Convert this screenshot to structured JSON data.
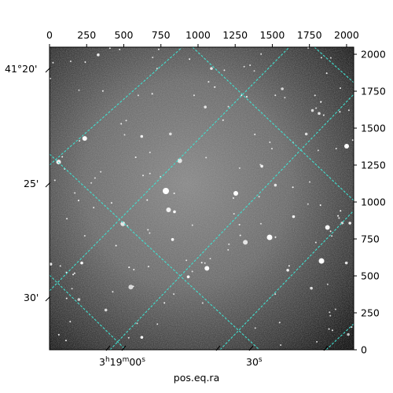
{
  "colors": {
    "grid": "#40e0d0",
    "frame": "#000000",
    "background": "#ffffff"
  },
  "image": {
    "description_type": "grayscale astronomical sky image with WCS coordinate grid",
    "pixel_axes": {
      "x_ticks": [
        "0",
        "250",
        "500",
        "750",
        "1000",
        "1250",
        "1500",
        "1750",
        "2000"
      ],
      "y_ticks": [
        "0",
        "250",
        "500",
        "750",
        "1000",
        "1250",
        "1500",
        "1750",
        "2000"
      ],
      "x_range": [
        0,
        2048
      ],
      "y_range": [
        0,
        2048
      ]
    },
    "world_axes": {
      "dec_labels": [
        "41°20'",
        "25'",
        "30'"
      ],
      "ra_labels": [
        "3h19m00s",
        "30s"
      ],
      "xlabel": "pos.eq.ra"
    }
  }
}
